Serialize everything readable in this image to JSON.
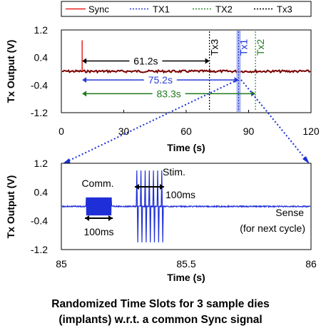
{
  "legend": [
    {
      "name": "Sync",
      "color": "#e8211f",
      "dash": "solid"
    },
    {
      "name": "TX1",
      "color": "#2b3bd6",
      "dash": "dot"
    },
    {
      "name": "TX2",
      "color": "#2e8b2e",
      "dash": "dot"
    },
    {
      "name": "Tx3",
      "color": "#000000",
      "dash": "dot"
    }
  ],
  "chart_data": [
    {
      "type": "line",
      "xlabel": "Time (s)",
      "ylabel": "Tx Output (V)",
      "xlim": [
        0,
        120
      ],
      "ylim": [
        -1.2,
        1.2
      ],
      "xticks": [
        "0",
        "30",
        "60",
        "90",
        "120"
      ],
      "yticks": [
        "1.2",
        "0.4",
        "-0.4",
        "-1.2"
      ],
      "baseline_v": 0.0,
      "events": [
        {
          "name": "Sync",
          "time": 10.0,
          "v_from": 0.0,
          "v_to": 0.9
        },
        {
          "name": "Tx3",
          "time": 71.2,
          "label": "Tx3"
        },
        {
          "name": "TX1",
          "time": 85.2,
          "label": "Tx1"
        },
        {
          "name": "TX2",
          "time": 93.3,
          "label": "Tx2"
        }
      ],
      "intervals": [
        {
          "from": 10.0,
          "to": 71.2,
          "label": "61.2s",
          "v": 0.3,
          "color": "#000000"
        },
        {
          "from": 10.0,
          "to": 85.2,
          "label": "75.2s",
          "v": -0.25,
          "color": "#2b3bd6"
        },
        {
          "from": 10.0,
          "to": 93.3,
          "label": "83.3s",
          "v": -0.65,
          "color": "#1e7a1e"
        }
      ]
    },
    {
      "type": "line",
      "xlabel": "Time (s)",
      "ylabel": "Tx Output (V)",
      "xlim": [
        85,
        86
      ],
      "ylim": [
        -1.2,
        1.2
      ],
      "xticks": [
        "85",
        "85.5",
        "86"
      ],
      "yticks": [
        "1.2",
        "0.4",
        "-0.4",
        "-1.2"
      ],
      "baseline_v": 0.0,
      "comm_burst": {
        "from": 85.1,
        "to": 85.2,
        "amplitude": 0.25,
        "label": "Comm.",
        "duration_label": "100ms"
      },
      "stim_burst": {
        "from": 85.3,
        "to": 85.4,
        "amplitude": 1.0,
        "pulses": 7,
        "label": "Stim.",
        "duration_label": "100ms"
      },
      "annotation": {
        "line1": "Sense",
        "line2": "(for next cycle)"
      }
    }
  ],
  "caption": {
    "line1": "Randomized Time Slots for 3 sample dies",
    "line2": "(implants) w.r.t. a common Sync signal"
  }
}
